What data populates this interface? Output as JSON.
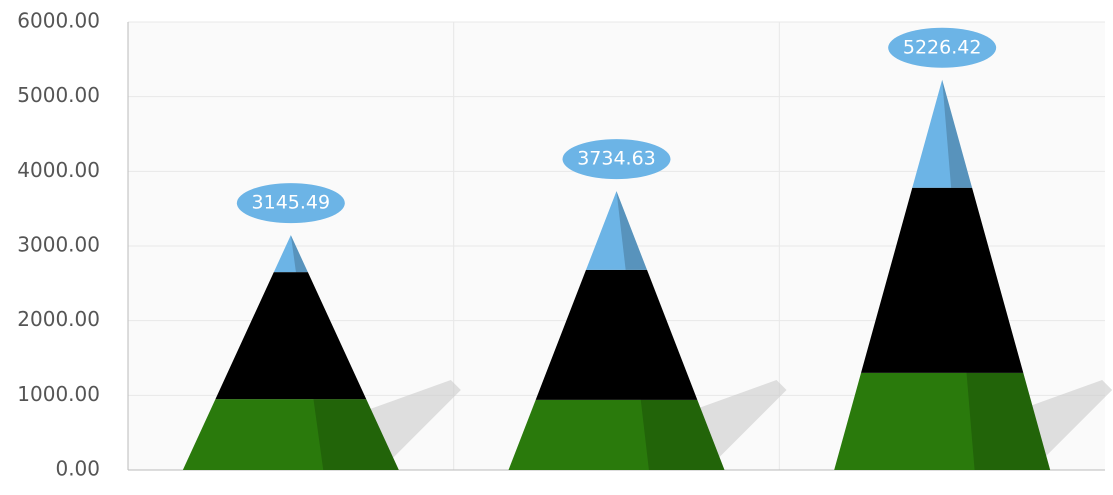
{
  "chart_data": {
    "type": "pyramid",
    "categories": [
      null,
      null,
      null
    ],
    "series": [
      {
        "color": "#2a7a0c",
        "values": [
          950,
          940,
          1300
        ]
      },
      {
        "color": "#000000",
        "values": [
          1700,
          1740,
          2480
        ]
      },
      {
        "color": "#6cb4e6",
        "values": [
          495.49,
          1054.63,
          1446.42
        ]
      }
    ],
    "totals": [
      3145.49,
      3734.63,
      5226.42
    ],
    "ylim": [
      0,
      6000
    ],
    "yticks": [
      {
        "value": 0,
        "label": "0.00"
      },
      {
        "value": 1000,
        "label": "1000.00"
      },
      {
        "value": 2000,
        "label": "2000.00"
      },
      {
        "value": 3000,
        "label": "3000.00"
      },
      {
        "value": 4000,
        "label": "4000.00"
      },
      {
        "value": 5000,
        "label": "5000.00"
      },
      {
        "value": 6000,
        "label": "6000.00"
      }
    ],
    "grid": true,
    "label_color": "#6cb4e6"
  }
}
